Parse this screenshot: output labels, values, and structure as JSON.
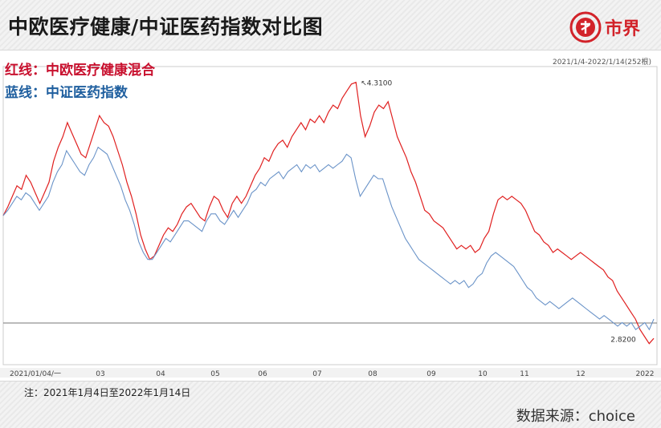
{
  "header": {
    "title": "中欧医疗健康/中证医药指数对比图",
    "brand": "市界"
  },
  "legend": {
    "red": "红线：中欧医疗健康混合",
    "blue": "蓝线：中证医药指数"
  },
  "range_label": "2021/1/4-2022/1/14(252根)",
  "note": "注：2021年1月4日至2022年1月14日",
  "source": "数据来源：choice",
  "colors": {
    "red": "#e02020",
    "blue": "#6a93c8",
    "brand": "#d2232a"
  },
  "chart_data": {
    "type": "line",
    "x_ticks": [
      "2021/01/04/一",
      "03",
      "04",
      "05",
      "06",
      "07",
      "08",
      "09",
      "10",
      "11",
      "12",
      "2022"
    ],
    "annotations": {
      "max": "4.3100",
      "min": "2.8200"
    },
    "ylim": [
      2.7,
      4.4
    ],
    "grid": true,
    "series": [
      {
        "key": "red",
        "values": [
          3.55,
          3.6,
          3.66,
          3.72,
          3.7,
          3.78,
          3.74,
          3.68,
          3.62,
          3.68,
          3.74,
          3.86,
          3.94,
          4.0,
          4.08,
          4.02,
          3.96,
          3.9,
          3.88,
          3.96,
          4.04,
          4.12,
          4.08,
          4.06,
          4.0,
          3.92,
          3.84,
          3.74,
          3.66,
          3.56,
          3.44,
          3.36,
          3.3,
          3.32,
          3.38,
          3.44,
          3.48,
          3.46,
          3.5,
          3.56,
          3.6,
          3.62,
          3.58,
          3.54,
          3.52,
          3.6,
          3.66,
          3.64,
          3.58,
          3.54,
          3.62,
          3.66,
          3.62,
          3.66,
          3.72,
          3.78,
          3.82,
          3.88,
          3.86,
          3.92,
          3.96,
          3.98,
          3.94,
          4.0,
          4.04,
          4.08,
          4.04,
          4.1,
          4.08,
          4.12,
          4.08,
          4.14,
          4.18,
          4.16,
          4.22,
          4.26,
          4.3,
          4.31,
          4.12,
          4.0,
          4.06,
          4.14,
          4.18,
          4.16,
          4.2,
          4.1,
          4.0,
          3.94,
          3.88,
          3.8,
          3.74,
          3.66,
          3.58,
          3.56,
          3.52,
          3.5,
          3.48,
          3.44,
          3.4,
          3.36,
          3.38,
          3.36,
          3.38,
          3.34,
          3.36,
          3.42,
          3.46,
          3.56,
          3.64,
          3.66,
          3.64,
          3.66,
          3.64,
          3.62,
          3.58,
          3.52,
          3.46,
          3.44,
          3.4,
          3.38,
          3.34,
          3.36,
          3.34,
          3.32,
          3.3,
          3.32,
          3.34,
          3.32,
          3.3,
          3.28,
          3.26,
          3.24,
          3.2,
          3.18,
          3.12,
          3.08,
          3.04,
          3.0,
          2.96,
          2.9,
          2.86,
          2.82,
          2.85
        ]
      },
      {
        "key": "blue",
        "values": [
          3.55,
          3.58,
          3.62,
          3.66,
          3.64,
          3.68,
          3.66,
          3.62,
          3.58,
          3.62,
          3.66,
          3.74,
          3.8,
          3.84,
          3.92,
          3.88,
          3.84,
          3.8,
          3.78,
          3.84,
          3.88,
          3.94,
          3.92,
          3.9,
          3.84,
          3.78,
          3.72,
          3.64,
          3.58,
          3.5,
          3.4,
          3.34,
          3.3,
          3.3,
          3.34,
          3.38,
          3.42,
          3.4,
          3.44,
          3.48,
          3.52,
          3.52,
          3.5,
          3.48,
          3.46,
          3.52,
          3.56,
          3.56,
          3.52,
          3.5,
          3.54,
          3.58,
          3.54,
          3.58,
          3.62,
          3.68,
          3.7,
          3.74,
          3.72,
          3.76,
          3.78,
          3.8,
          3.76,
          3.8,
          3.82,
          3.84,
          3.8,
          3.84,
          3.82,
          3.84,
          3.8,
          3.82,
          3.84,
          3.82,
          3.84,
          3.86,
          3.9,
          3.88,
          3.76,
          3.66,
          3.7,
          3.74,
          3.78,
          3.76,
          3.76,
          3.68,
          3.6,
          3.54,
          3.48,
          3.42,
          3.38,
          3.34,
          3.3,
          3.28,
          3.26,
          3.24,
          3.22,
          3.2,
          3.18,
          3.16,
          3.18,
          3.16,
          3.18,
          3.14,
          3.16,
          3.2,
          3.22,
          3.28,
          3.32,
          3.34,
          3.32,
          3.3,
          3.28,
          3.26,
          3.22,
          3.18,
          3.14,
          3.12,
          3.08,
          3.06,
          3.04,
          3.06,
          3.04,
          3.02,
          3.04,
          3.06,
          3.08,
          3.06,
          3.04,
          3.02,
          3.0,
          2.98,
          2.96,
          2.98,
          2.96,
          2.94,
          2.92,
          2.94,
          2.92,
          2.94,
          2.9,
          2.92,
          2.94,
          2.9,
          2.96
        ]
      }
    ]
  }
}
